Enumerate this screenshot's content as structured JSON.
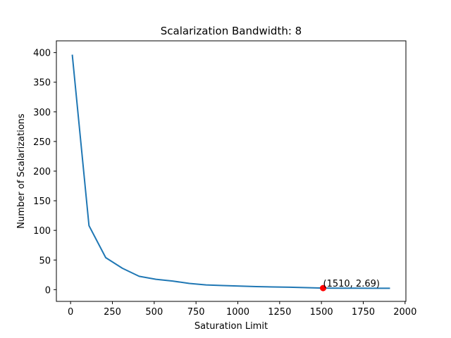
{
  "chart_data": {
    "type": "line",
    "title": "Scalarization Bandwidth: 8",
    "xlabel": "Saturation Limit",
    "ylabel": "Number of Scalarizations",
    "xlim": [
      -85,
      2005
    ],
    "ylim": [
      -19.8,
      419.8
    ],
    "xticks": [
      0,
      250,
      500,
      750,
      1000,
      1250,
      1500,
      1750,
      2000
    ],
    "yticks": [
      0,
      50,
      100,
      150,
      200,
      250,
      300,
      350,
      400
    ],
    "grid": false,
    "series": [
      {
        "color": "#1f77b4",
        "x": [
          10,
          110,
          210,
          310,
          410,
          510,
          610,
          710,
          810,
          910,
          1010,
          1110,
          1210,
          1310,
          1410,
          1510,
          1610,
          1710,
          1810,
          1910
        ],
        "y": [
          396.5,
          108,
          54,
          36,
          22.5,
          17.5,
          14.5,
          10.5,
          8,
          7,
          6,
          5.2,
          4.6,
          4.1,
          3.4,
          2.69,
          2.55,
          2.45,
          2.35,
          2.3
        ]
      }
    ],
    "highlight": {
      "x": 1510,
      "y": 2.69,
      "label": "(1510, 2.69)",
      "color": "#ff0000"
    }
  }
}
